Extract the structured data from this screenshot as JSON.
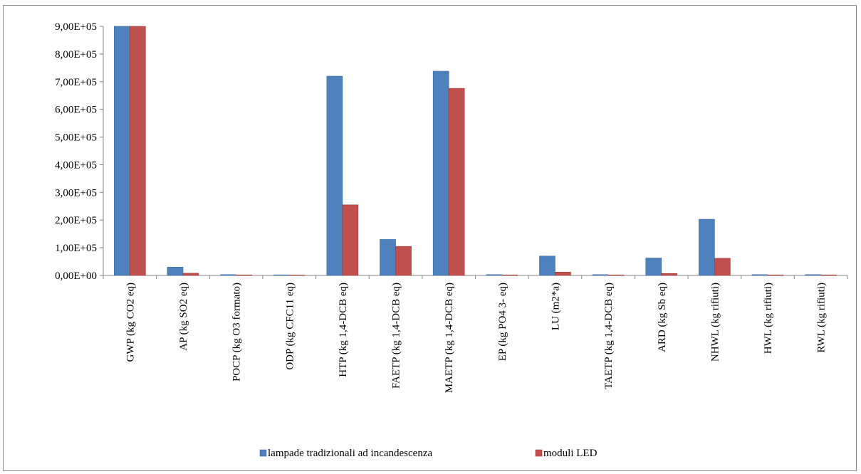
{
  "chart_data": {
    "type": "bar",
    "title": "",
    "xlabel": "",
    "ylabel": "",
    "ylim": [
      0,
      900000
    ],
    "yticks": [
      0,
      100000,
      200000,
      300000,
      400000,
      500000,
      600000,
      700000,
      800000,
      900000
    ],
    "ytick_labels": [
      "0,00E+00",
      "1,00E+05",
      "2,00E+05",
      "3,00E+05",
      "4,00E+05",
      "5,00E+05",
      "6,00E+05",
      "7,00E+05",
      "8,00E+05",
      "9,00E+05"
    ],
    "grid": false,
    "legend_position": "bottom",
    "categories": [
      "GWP (kg CO2 eq)",
      "AP (kg SO2 eq)",
      "POCP (kg O3 formato)",
      "ODP (kg CFC11 eq)",
      "HTP (kg 1,4-DCB eq)",
      "FAETP (kg 1,4-DCB eq)",
      "MAETP (kg 1,4-DCB eq)",
      "EP (kg PO4 3- eq)",
      "LU (m2*a)",
      "TAETP (kg 1,4-DCB eq)",
      "ARD (kg Sb eq)",
      "NHWL (kg rifiuti)",
      "HWL (kg rifiuti)",
      "RWL (kg rifiuti)"
    ],
    "series": [
      {
        "name": "lampade tradizionali ad incandescenza",
        "color": "#4f81bd",
        "values": [
          900000,
          30000,
          3000,
          2000,
          720000,
          130000,
          738000,
          3000,
          70000,
          3000,
          63000,
          203000,
          3000,
          3000
        ]
      },
      {
        "name": "moduli LED",
        "color": "#c0504d",
        "values": [
          900000,
          8000,
          2000,
          500,
          255000,
          105000,
          676000,
          2000,
          12000,
          2000,
          7000,
          62000,
          2000,
          2000
        ]
      }
    ]
  }
}
